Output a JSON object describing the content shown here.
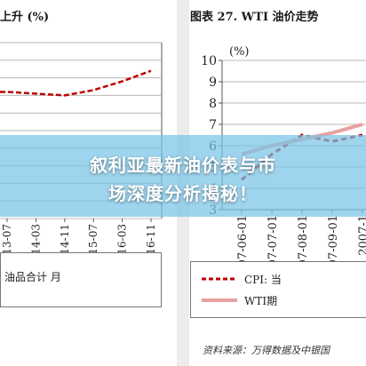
{
  "banner": {
    "line1": "叙利亚最新油价表与市",
    "line2": "场深度分析揭秘！"
  },
  "colors": {
    "cpi": "#c00000",
    "wti": "#e8a0a0",
    "grid": "#b8b8b8",
    "banner": "#78c4e6"
  },
  "chart_data": [
    {
      "type": "line",
      "title": "上升 (%)",
      "categories": [
        "2013-07",
        "2014-03",
        "2014-11",
        "2015-07",
        "2016-03",
        "2016-11"
      ],
      "series": [
        {
          "style": "dashed",
          "color": "#c00000",
          "values": [
            7.2,
            7.1,
            7.0,
            7.3,
            7.8,
            8.4
          ]
        }
      ],
      "legend": [
        {
          "label": "油品合计 月"
        }
      ],
      "grid": true
    },
    {
      "type": "line",
      "title": "图表 27. WTI 油价走势",
      "ylabel": "(%)",
      "yticks": [
        "10",
        "9",
        "8",
        "7",
        "6",
        "5",
        "4",
        "3"
      ],
      "ylim": [
        3,
        10
      ],
      "categories": [
        "2007-06-01",
        "2007-07-01",
        "2007-08-01",
        "2007-09-01",
        "2007-1"
      ],
      "series": [
        {
          "name": "CPI: 当",
          "style": "dashed",
          "color": "#c00000",
          "values": [
            4.4,
            5.6,
            6.5,
            6.2,
            6.5
          ]
        },
        {
          "name": "WTI期",
          "style": "solid",
          "color": "#e8a0a0",
          "values": [
            5.6,
            6.0,
            6.3,
            6.6,
            7.0
          ]
        }
      ],
      "legend": [
        {
          "label": "CPI: 当"
        },
        {
          "label": "WTI期"
        }
      ],
      "source": "资料来源：万得数据及中银国",
      "grid": true
    }
  ]
}
